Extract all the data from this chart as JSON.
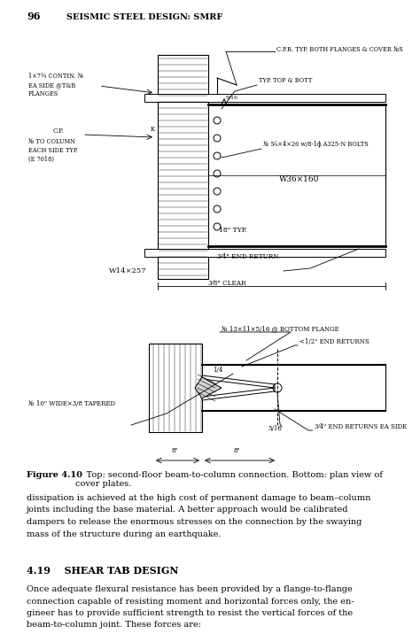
{
  "page_number": "96",
  "header_text": "SEISMIC STEEL DESIGN: SMRF",
  "background_color": "#ffffff",
  "text_color": "#000000",
  "figure_caption_bold": "Figure 4.10",
  "figure_caption_rest": "    Top: second-floor beam-to-column connection. Bottom: plan view of\ncover plates.",
  "body_text_1": "dissipation is achieved at the high cost of permanent damage to beam–column\njoints including the base material. A better approach would be calibrated\ndampers to release the enormous stresses on the connection by the swaying\nmass of the structure during an earthquake.",
  "section_header": "4.19    SHEAR TAB DESIGN",
  "body_text_2": "Once adequate flexural resistance has been provided by a flange-to-flange\nconnection capable of resisting moment and horizontal forces only, the en-\ngineer has to provide sufficient strength to resist the vertical forces of the\nbeam-to-column joint. These forces are:"
}
